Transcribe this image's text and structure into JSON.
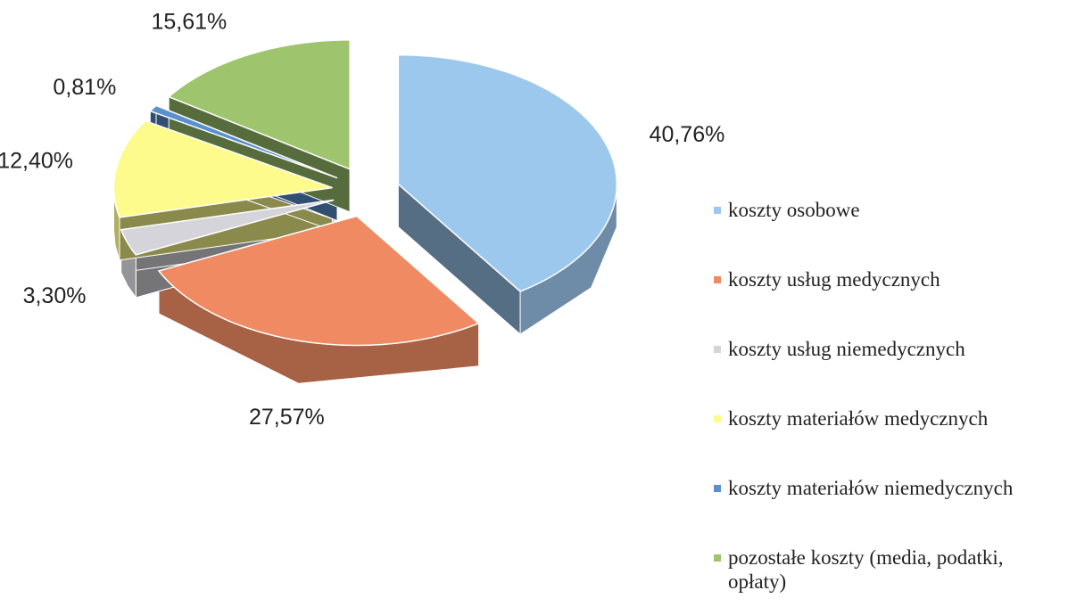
{
  "chart_data": {
    "type": "pie",
    "categories": [
      "koszty osobowe",
      "koszty usług medycznych",
      "koszty usług niemedycznych",
      "koszty materiałów medycznych",
      "koszty materiałów niemedycznych",
      "pozostałe koszty (media, podatki, opłaty)"
    ],
    "values": [
      40.76,
      27.57,
      3.3,
      12.4,
      0.81,
      15.61
    ],
    "value_labels": [
      "40,76%",
      "27,57%",
      "3,30%",
      "12,40%",
      "0,81%",
      "15,61%"
    ],
    "colors": [
      "#9dc8ee",
      "#ef8a62",
      "#d4d4da",
      "#fdfb8c",
      "#5a8fd0",
      "#9ec56e"
    ]
  }
}
